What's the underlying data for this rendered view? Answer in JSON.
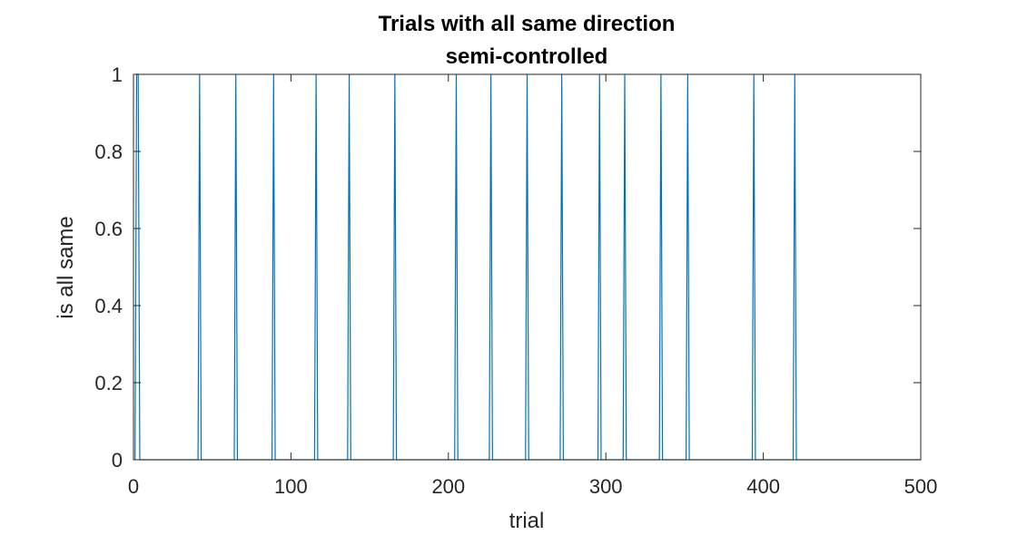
{
  "chart_data": {
    "type": "line",
    "title": "Trials with all same direction",
    "subtitle": "semi-controlled",
    "xlabel": "trial",
    "ylabel": "is all same",
    "xlim": [
      0,
      500
    ],
    "ylim": [
      0,
      1
    ],
    "xticks": [
      0,
      100,
      200,
      300,
      400,
      500
    ],
    "yticks": [
      0,
      0.2,
      0.4,
      0.6,
      0.8,
      1
    ],
    "xtick_labels": [
      "0",
      "100",
      "200",
      "300",
      "400",
      "500"
    ],
    "ytick_labels": [
      "0",
      "0.2",
      "0.4",
      "0.6",
      "0.8",
      "1"
    ],
    "grid": false,
    "series": [
      {
        "color": "#0072BD",
        "trial_range": [
          1,
          500
        ],
        "ones_at_trials": [
          2,
          3,
          42,
          65,
          89,
          116,
          137,
          166,
          205,
          227,
          250,
          272,
          296,
          312,
          335,
          352,
          394,
          420
        ],
        "zeros_elsewhere": true
      }
    ]
  }
}
